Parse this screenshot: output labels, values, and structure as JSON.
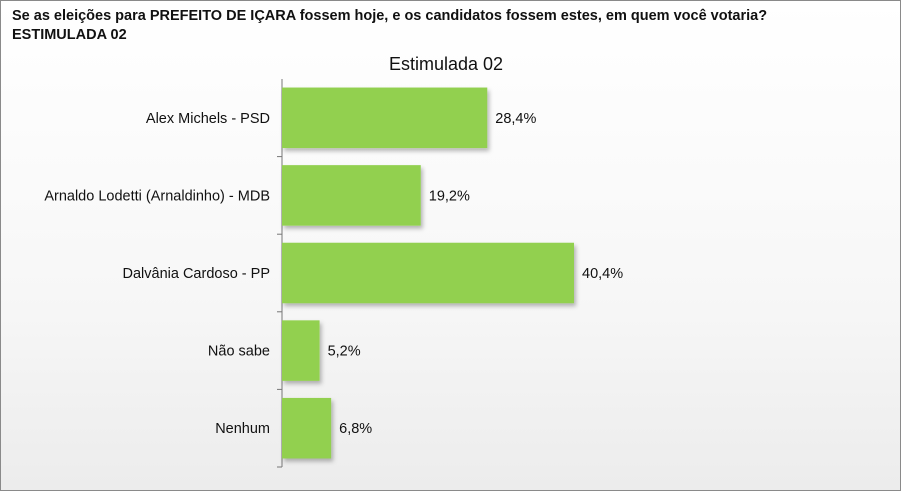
{
  "header": {
    "question_line1": "Se as eleições para PREFEITO DE IÇARA fossem hoje, e os candidatos fossem estes, em quem você votaria?",
    "question_line2": "ESTIMULADA 02"
  },
  "chart_data": {
    "type": "bar",
    "orientation": "horizontal",
    "title": "Estimulada 02",
    "categories": [
      "Alex Michels - PSD",
      "Arnaldo Lodetti (Arnaldinho) - MDB",
      "Dalvânia Cardoso - PP",
      "Não sabe",
      "Nenhum"
    ],
    "values": [
      28.4,
      19.2,
      40.4,
      5.2,
      6.8
    ],
    "value_labels": [
      "28,4%",
      "19,2%",
      "40,4%",
      "5,2%",
      "6,8%"
    ],
    "xlabel": "",
    "ylabel": "",
    "xlim": [
      0,
      100
    ],
    "grid": false,
    "legend": "none",
    "bar_color": "#92d050"
  }
}
